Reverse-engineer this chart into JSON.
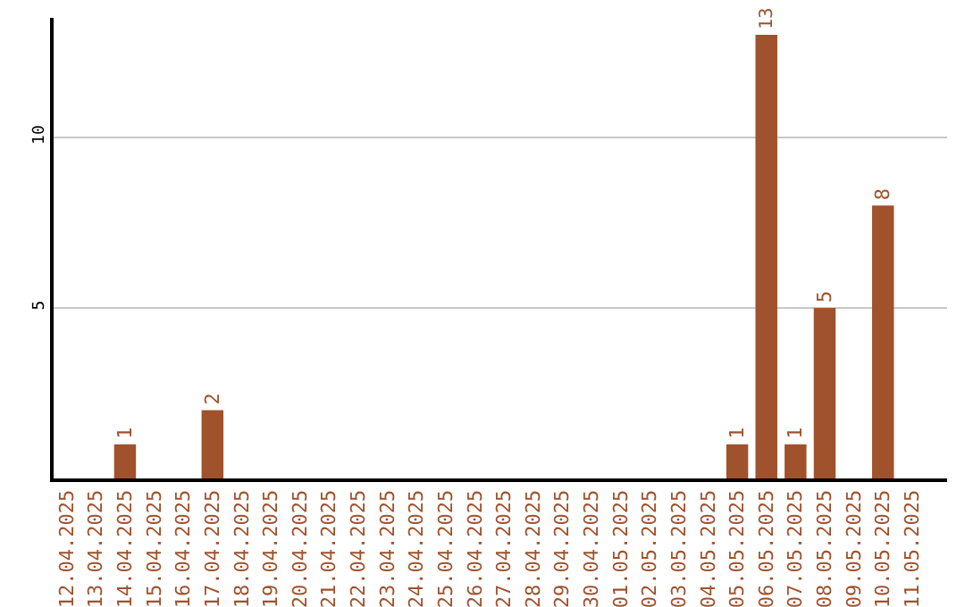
{
  "chart_data": {
    "type": "bar",
    "categories": [
      "12.04.2025",
      "13.04.2025",
      "14.04.2025",
      "15.04.2025",
      "16.04.2025",
      "17.04.2025",
      "18.04.2025",
      "19.04.2025",
      "20.04.2025",
      "21.04.2025",
      "22.04.2025",
      "23.04.2025",
      "24.04.2025",
      "25.04.2025",
      "26.04.2025",
      "27.04.2025",
      "28.04.2025",
      "29.04.2025",
      "30.04.2025",
      "01.05.2025",
      "02.05.2025",
      "03.05.2025",
      "04.05.2025",
      "05.05.2025",
      "06.05.2025",
      "07.05.2025",
      "08.05.2025",
      "09.05.2025",
      "10.05.2025",
      "11.05.2025"
    ],
    "values": [
      0,
      0,
      1,
      0,
      0,
      2,
      0,
      0,
      0,
      0,
      0,
      0,
      0,
      0,
      0,
      0,
      0,
      0,
      0,
      0,
      0,
      0,
      0,
      1,
      13,
      1,
      5,
      0,
      8,
      0
    ],
    "value_labels": [
      null,
      null,
      "1",
      null,
      null,
      "2",
      null,
      null,
      null,
      null,
      null,
      null,
      null,
      null,
      null,
      null,
      null,
      null,
      null,
      null,
      null,
      null,
      null,
      "1",
      "13",
      "1",
      "5",
      null,
      "8",
      null
    ],
    "color": "#a0522d",
    "ylim": [
      0,
      13.5
    ],
    "yticks": [
      5,
      10
    ],
    "grid": "y",
    "legend": false
  }
}
